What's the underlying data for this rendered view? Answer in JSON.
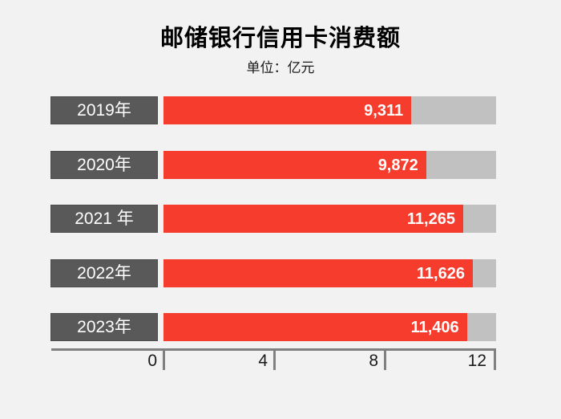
{
  "title": "邮储银行信用卡消费额",
  "subtitle": "单位：亿元",
  "chart_data": {
    "type": "bar",
    "orientation": "horizontal",
    "title": "邮储银行信用卡消费额",
    "subtitle_unit": "单位：亿元",
    "categories": [
      "2019年",
      "2020年",
      "2021 年",
      "2022年",
      "2023年"
    ],
    "values": [
      9311,
      9872,
      11265,
      11626,
      11406
    ],
    "value_labels": [
      "9,311",
      "9,872",
      "11,265",
      "11,626",
      "11,406"
    ],
    "x_ticks": [
      "0",
      "4",
      "8",
      "12"
    ],
    "x_tick_unit": "千亿元刻度(0/4/8/12 代表 0/4000/8000/12000 亿元)",
    "xlim": [
      0,
      12000
    ],
    "track_max": 12500,
    "grid": false,
    "legend": false,
    "colors": {
      "background": "#f2f2f2",
      "bar": "#f63c2d",
      "track": "#c1c1c1",
      "label_box": "#595959",
      "label_text": "#ffffff",
      "value_text": "#ffffff",
      "axis": "#808080",
      "tick_text": "#1a1a1a",
      "title_text": "#000000"
    }
  }
}
